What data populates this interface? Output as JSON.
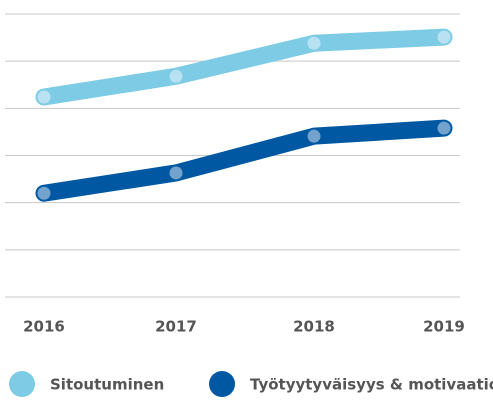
{
  "chart_data": {
    "type": "line",
    "categories": [
      "2016",
      "2017",
      "2018",
      "2019"
    ],
    "series": [
      {
        "name": "Sitoutuminen",
        "color": "#7ecbe5",
        "values": [
          4.24,
          4.68,
          5.38,
          5.51
        ]
      },
      {
        "name": "Työtyytyväisyys & motivaatio",
        "color": "#0058a3",
        "values": [
          2.2,
          2.63,
          3.41,
          3.58
        ]
      }
    ],
    "ylim": [
      0,
      6
    ],
    "yticks": [
      0,
      1,
      2,
      3,
      4,
      5,
      6
    ],
    "grid": true
  }
}
